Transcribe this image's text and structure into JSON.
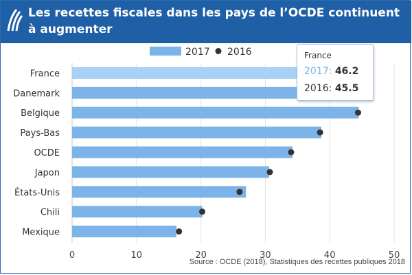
{
  "header": {
    "title": "Les recettes fiscales dans les pays de l’OCDE continuent à augmenter",
    "logo_icon": "oecd-logo-icon"
  },
  "colors": {
    "header_bg": "#1f5fa5",
    "bar_2017": "#7cb4ea",
    "highlight_bar": "#a9d0f5",
    "dot_2016": "#333333"
  },
  "chart_data": {
    "type": "bar",
    "orientation": "horizontal",
    "categories": [
      "France",
      "Danemark",
      "Belgique",
      "Pays-Bas",
      "OCDE",
      "Japon",
      "États-Unis",
      "Chili",
      "Mexique"
    ],
    "series": [
      {
        "name": "2017",
        "mark": "bar",
        "values": [
          46.2,
          46.0,
          44.5,
          38.7,
          34.2,
          30.6,
          27.0,
          20.2,
          16.2
        ]
      },
      {
        "name": "2016",
        "mark": "dot",
        "values": [
          45.5,
          46.2,
          44.4,
          38.5,
          34.0,
          30.7,
          26.0,
          20.2,
          16.6
        ]
      }
    ],
    "xlim": [
      0,
      50
    ],
    "xticks": [
      "0",
      "10",
      "20",
      "30",
      "40",
      "50"
    ],
    "grid": "vertical",
    "legend": "top",
    "legend_labels": [
      "2017",
      "2016"
    ]
  },
  "tooltip": {
    "category": "France",
    "row1_label": "2017",
    "row1_value": "46.2",
    "row2_label": "2016",
    "row2_value": "45.5"
  },
  "source": "Source : OCDE (2018), Statistiques des recettes publiques 2018"
}
